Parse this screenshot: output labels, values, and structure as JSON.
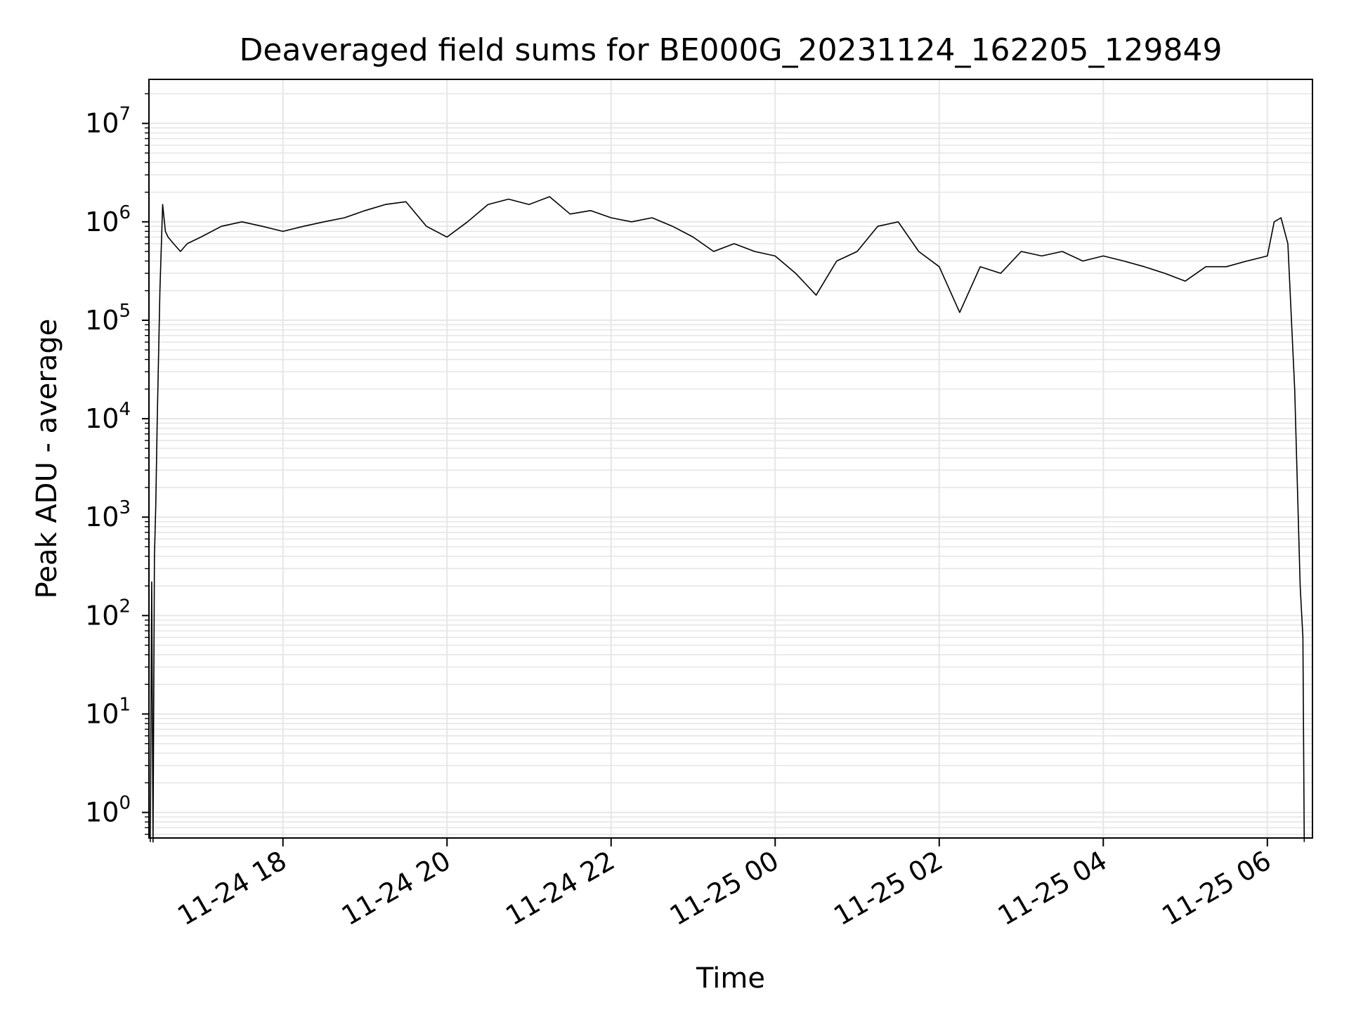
{
  "chart_data": {
    "type": "line",
    "title": "Deaveraged field sums for BE000G_20231124_162205_129849",
    "xlabel": "Time",
    "ylabel": "Peak ADU - average",
    "yscale": "log",
    "ylim": [
      0.55,
      28000000
    ],
    "xlim": [
      "2023-11-24 16:22",
      "2023-11-25 06:33"
    ],
    "grid": true,
    "line_color": "#000000",
    "grid_color": "#e6e6e6",
    "x_ticks": [
      {
        "value": "2023-11-24 18:00",
        "label": "11-24 18"
      },
      {
        "value": "2023-11-24 20:00",
        "label": "11-24 20"
      },
      {
        "value": "2023-11-24 22:00",
        "label": "11-24 22"
      },
      {
        "value": "2023-11-25 00:00",
        "label": "11-25 00"
      },
      {
        "value": "2023-11-25 02:00",
        "label": "11-25 02"
      },
      {
        "value": "2023-11-25 04:00",
        "label": "11-25 04"
      },
      {
        "value": "2023-11-25 06:00",
        "label": "11-25 06"
      }
    ],
    "y_ticks": [
      {
        "value": 1,
        "base": "10",
        "exp": "0"
      },
      {
        "value": 10,
        "base": "10",
        "exp": "1"
      },
      {
        "value": 100,
        "base": "10",
        "exp": "2"
      },
      {
        "value": 1000,
        "base": "10",
        "exp": "3"
      },
      {
        "value": 10000,
        "base": "10",
        "exp": "4"
      },
      {
        "value": 100000,
        "base": "10",
        "exp": "5"
      },
      {
        "value": 1000000,
        "base": "10",
        "exp": "6"
      },
      {
        "value": 10000000,
        "base": "10",
        "exp": "7"
      }
    ],
    "series": [
      {
        "x": [
          "2023-11-24 16:23",
          "2023-11-24 16:24",
          "2023-11-24 16:25",
          "2023-11-24 16:26",
          "2023-11-24 16:27",
          "2023-11-24 16:28",
          "2023-11-24 16:30",
          "2023-11-24 16:32",
          "2023-11-24 16:34",
          "2023-11-24 16:36",
          "2023-11-24 16:40",
          "2023-11-24 16:45",
          "2023-11-24 16:50",
          "2023-11-24 17:00",
          "2023-11-24 17:15",
          "2023-11-24 17:30",
          "2023-11-24 17:45",
          "2023-11-24 18:00",
          "2023-11-24 18:15",
          "2023-11-24 18:30",
          "2023-11-24 18:45",
          "2023-11-24 19:00",
          "2023-11-24 19:15",
          "2023-11-24 19:30",
          "2023-11-24 19:45",
          "2023-11-24 20:00",
          "2023-11-24 20:15",
          "2023-11-24 20:30",
          "2023-11-24 20:45",
          "2023-11-24 21:00",
          "2023-11-24 21:15",
          "2023-11-24 21:30",
          "2023-11-24 21:45",
          "2023-11-24 22:00",
          "2023-11-24 22:15",
          "2023-11-24 22:30",
          "2023-11-24 22:45",
          "2023-11-24 23:00",
          "2023-11-24 23:15",
          "2023-11-24 23:30",
          "2023-11-24 23:45",
          "2023-11-25 00:00",
          "2023-11-25 00:15",
          "2023-11-25 00:30",
          "2023-11-25 00:45",
          "2023-11-25 01:00",
          "2023-11-25 01:15",
          "2023-11-25 01:30",
          "2023-11-25 01:45",
          "2023-11-25 02:00",
          "2023-11-25 02:15",
          "2023-11-25 02:30",
          "2023-11-25 02:45",
          "2023-11-25 03:00",
          "2023-11-25 03:15",
          "2023-11-25 03:30",
          "2023-11-25 03:45",
          "2023-11-25 04:00",
          "2023-11-25 04:15",
          "2023-11-25 04:30",
          "2023-11-25 04:45",
          "2023-11-25 05:00",
          "2023-11-25 05:15",
          "2023-11-25 05:30",
          "2023-11-25 05:45",
          "2023-11-25 06:00",
          "2023-11-25 06:05",
          "2023-11-25 06:10",
          "2023-11-25 06:15",
          "2023-11-25 06:20",
          "2023-11-25 06:24",
          "2023-11-25 06:26",
          "2023-11-25 06:27"
        ],
        "y": [
          0.5,
          220,
          0.5,
          400,
          1300,
          9000,
          200000,
          1500000,
          800000,
          700000,
          600000,
          500000,
          600000,
          700000,
          900000,
          1000000,
          900000,
          800000,
          900000,
          1000000,
          1100000,
          1300000,
          1500000,
          1600000,
          900000,
          700000,
          1000000,
          1500000,
          1700000,
          1500000,
          1800000,
          1200000,
          1300000,
          1100000,
          1000000,
          1100000,
          900000,
          700000,
          500000,
          600000,
          500000,
          450000,
          300000,
          180000,
          400000,
          500000,
          900000,
          1000000,
          500000,
          350000,
          120000,
          350000,
          300000,
          500000,
          450000,
          500000,
          400000,
          450000,
          400000,
          350000,
          300000,
          250000,
          350000,
          350000,
          400000,
          450000,
          1000000,
          1100000,
          600000,
          20000,
          200,
          60,
          0.5
        ]
      }
    ]
  }
}
